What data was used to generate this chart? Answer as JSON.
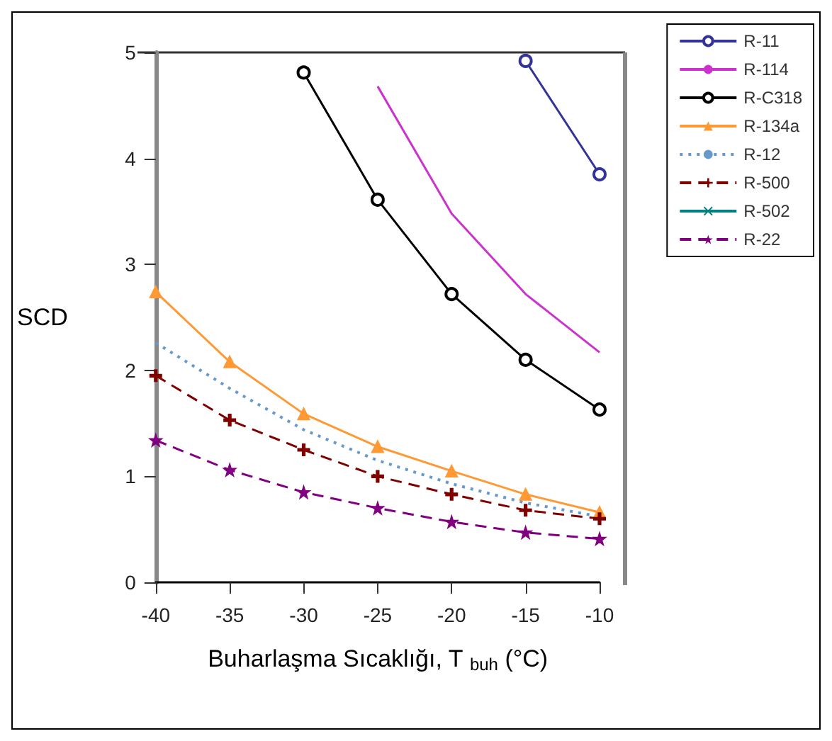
{
  "chart_data": {
    "type": "line",
    "xlabel": "Buharlaşma Sıcaklığı, T $_{buh}$ (°C)",
    "ylabel": "SCD",
    "x": [
      -40,
      -35,
      -30,
      -25,
      -20,
      -15,
      -10
    ],
    "xlim": [
      -40,
      -10
    ],
    "xticks": [
      -40,
      -35,
      -30,
      -25,
      -20,
      -15,
      -10
    ],
    "ylim": [
      0,
      5
    ],
    "yticks": [
      0,
      1,
      2,
      3,
      4,
      5
    ],
    "grid": false,
    "legend": "top right",
    "series": [
      {
        "name": "R-11",
        "color": "#333399",
        "marker": "circle",
        "line_style": "solid",
        "values": [
          null,
          null,
          null,
          null,
          null,
          4.92,
          3.85
        ]
      },
      {
        "name": "R-114",
        "color": "#cc33cc",
        "marker": "none",
        "line_style": "solid",
        "values": [
          null,
          null,
          null,
          4.68,
          3.48,
          2.72,
          2.17
        ]
      },
      {
        "name": "R-C318",
        "color": "#000000",
        "marker": "circle",
        "line_style": "solid",
        "values": [
          null,
          null,
          4.81,
          3.61,
          2.72,
          2.1,
          1.63
        ]
      },
      {
        "name": "R-134a",
        "color": "#ff9933",
        "marker": "triangle",
        "line_style": "solid",
        "values": [
          2.74,
          2.08,
          1.59,
          1.28,
          1.05,
          0.83,
          0.66
        ]
      },
      {
        "name": "R-12",
        "color": "#6699cc",
        "marker": "none",
        "line_style": "dotted",
        "values": [
          2.26,
          1.83,
          1.44,
          1.15,
          0.93,
          0.75,
          0.62
        ]
      },
      {
        "name": "R-500",
        "color": "#800000",
        "marker": "cross",
        "line_style": "dashed",
        "values": [
          1.95,
          1.53,
          1.25,
          1.0,
          0.83,
          0.68,
          0.6
        ]
      },
      {
        "name": "R-502",
        "color": "#008080",
        "marker": "cross",
        "line_style": "solid",
        "values": [
          null,
          null,
          null,
          null,
          null,
          null,
          null
        ]
      },
      {
        "name": "R-22",
        "color": "#800080",
        "marker": "star",
        "line_style": "dashed",
        "values": [
          1.34,
          1.06,
          0.85,
          0.7,
          0.57,
          0.47,
          0.41
        ]
      }
    ]
  }
}
